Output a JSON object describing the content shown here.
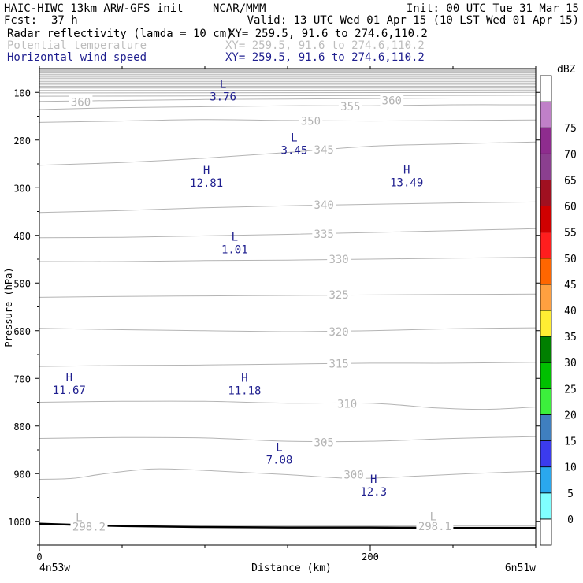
{
  "header": {
    "model": "HAIC-HIWC 13km ARW-GFS init",
    "org": "NCAR/MMM",
    "init": "Init: 00 UTC Tue 31 Mar 15",
    "fcst_label": "Fcst:",
    "fcst_value": "37 h",
    "valid": "Valid: 13 UTC Wed 01 Apr 15 (10 LST Wed 01 Apr 15)"
  },
  "fields": [
    {
      "name": "Radar reflectivity (lamda = 10 cm)",
      "xy": "XY= 259.5, 91.6 to 274.6,110.2",
      "color": "#000000"
    },
    {
      "name": "Potential temperature",
      "xy": "XY= 259.5, 91.6 to 274.6,110.2",
      "color": "#bdbdbd"
    },
    {
      "name": "Horizontal wind speed",
      "xy": "XY= 259.5, 91.6 to 274.6,110.2",
      "color": "#1f1f8f"
    }
  ],
  "colors": {
    "theta": "#b4b4b4",
    "wind": "#1f1f8f",
    "terrain": "#000000"
  },
  "chart_data": {
    "type": "cross-section",
    "xlabel": "Distance (km)",
    "ylabel": "Pressure (hPa)",
    "x_start_label": "4n53w",
    "x_end_label": "6n51w",
    "xlim": [
      0,
      300
    ],
    "ylim": [
      1050,
      50
    ],
    "y_scale": "linear, pressure decreasing upward",
    "x_ticks": [
      0,
      200
    ],
    "x_tick_labels": [
      "0",
      "200"
    ],
    "y_ticks": [
      100,
      200,
      300,
      400,
      500,
      600,
      700,
      800,
      900,
      1000
    ],
    "y_tick_labels": [
      "100",
      "200",
      "300",
      "400",
      "500",
      "600",
      "700",
      "800",
      "900",
      "1000"
    ],
    "potential_temperature": {
      "labeled_contours": [
        "300",
        "305",
        "310",
        "315",
        "320",
        "325",
        "330",
        "335",
        "340",
        "345",
        "350",
        "355",
        "360"
      ],
      "contour_interval_K": 5,
      "contours": [
        {
          "k": 298,
          "x": [
            0,
            300
          ],
          "p": [
            1010,
            1010
          ]
        },
        {
          "k": 300,
          "x": [
            0,
            20,
            40,
            70,
            110,
            150,
            190,
            230,
            260,
            300
          ],
          "p": [
            912,
            910,
            900,
            890,
            895,
            902,
            910,
            905,
            900,
            895
          ]
        },
        {
          "k": 305,
          "x": [
            0,
            50,
            100,
            150,
            200,
            250,
            300
          ],
          "p": [
            826,
            824,
            825,
            832,
            832,
            826,
            822
          ]
        },
        {
          "k": 310,
          "x": [
            0,
            50,
            100,
            150,
            200,
            240,
            270,
            300
          ],
          "p": [
            750,
            748,
            748,
            752,
            752,
            762,
            765,
            760
          ]
        },
        {
          "k": 315,
          "x": [
            0,
            50,
            100,
            150,
            200,
            250,
            300
          ],
          "p": [
            675,
            673,
            672,
            670,
            668,
            668,
            666
          ]
        },
        {
          "k": 320,
          "x": [
            0,
            50,
            100,
            150,
            200,
            250,
            300
          ],
          "p": [
            595,
            598,
            600,
            602,
            600,
            596,
            594
          ]
        },
        {
          "k": 325,
          "x": [
            0,
            50,
            100,
            150,
            200,
            250,
            300
          ],
          "p": [
            530,
            528,
            527,
            526,
            525,
            524,
            523
          ]
        },
        {
          "k": 330,
          "x": [
            0,
            50,
            100,
            150,
            200,
            250,
            300
          ],
          "p": [
            455,
            455,
            453,
            452,
            450,
            448,
            446
          ]
        },
        {
          "k": 335,
          "x": [
            0,
            50,
            100,
            150,
            200,
            250,
            300
          ],
          "p": [
            405,
            404,
            401,
            398,
            394,
            390,
            386
          ]
        },
        {
          "k": 340,
          "x": [
            0,
            50,
            100,
            150,
            200,
            250,
            300
          ],
          "p": [
            352,
            348,
            342,
            338,
            335,
            332,
            330
          ]
        },
        {
          "k": 345,
          "x": [
            0,
            50,
            100,
            150,
            200,
            250,
            300
          ],
          "p": [
            253,
            247,
            238,
            226,
            213,
            208,
            204
          ]
        },
        {
          "k": 350,
          "x": [
            0,
            50,
            100,
            150,
            200,
            250,
            300
          ],
          "p": [
            163,
            160,
            157,
            159,
            160,
            159,
            158
          ]
        },
        {
          "k": 355,
          "x": [
            0,
            50,
            100,
            150,
            200,
            250,
            300
          ],
          "p": [
            136,
            132,
            130,
            128,
            128,
            126,
            126
          ]
        },
        {
          "k": 360,
          "x": [
            0,
            50,
            100,
            150,
            200,
            250,
            300
          ],
          "p": [
            119,
            117,
            115,
            114,
            113,
            112,
            112
          ]
        },
        {
          "k": 365,
          "x": [
            0,
            300
          ],
          "p": [
            108,
            106
          ]
        },
        {
          "k": 370,
          "x": [
            0,
            300
          ],
          "p": [
            101,
            100
          ]
        },
        {
          "k": 375,
          "x": [
            0,
            300
          ],
          "p": [
            96,
            95
          ]
        },
        {
          "k": 380,
          "x": [
            0,
            300
          ],
          "p": [
            91,
            91
          ]
        },
        {
          "k": 385,
          "x": [
            0,
            300
          ],
          "p": [
            87,
            87
          ]
        },
        {
          "k": 390,
          "x": [
            0,
            300
          ],
          "p": [
            83,
            83
          ]
        },
        {
          "k": 395,
          "x": [
            0,
            300
          ],
          "p": [
            80,
            80
          ]
        },
        {
          "k": 400,
          "x": [
            0,
            300
          ],
          "p": [
            77,
            77
          ]
        },
        {
          "k": 405,
          "x": [
            0,
            300
          ],
          "p": [
            74,
            74
          ]
        },
        {
          "k": 410,
          "x": [
            0,
            300
          ],
          "p": [
            71,
            71
          ]
        },
        {
          "k": 415,
          "x": [
            0,
            300
          ],
          "p": [
            68,
            68
          ]
        },
        {
          "k": 420,
          "x": [
            0,
            300
          ],
          "p": [
            65,
            65
          ]
        },
        {
          "k": 425,
          "x": [
            0,
            300
          ],
          "p": [
            62,
            62
          ]
        },
        {
          "k": 430,
          "x": [
            0,
            300
          ],
          "p": [
            59,
            59
          ]
        },
        {
          "k": 435,
          "x": [
            0,
            300
          ],
          "p": [
            57,
            57
          ]
        },
        {
          "k": 440,
          "x": [
            0,
            300
          ],
          "p": [
            55,
            55
          ]
        },
        {
          "k": 445,
          "x": [
            0,
            300
          ],
          "p": [
            53,
            53
          ]
        },
        {
          "k": 450,
          "x": [
            0,
            300
          ],
          "p": [
            51,
            51
          ]
        }
      ],
      "labels": [
        {
          "text": "360",
          "x": 25,
          "p": 120
        },
        {
          "text": "360",
          "x": 213,
          "p": 117
        },
        {
          "text": "355",
          "x": 188,
          "p": 129
        },
        {
          "text": "350",
          "x": 164,
          "p": 160
        },
        {
          "text": "345",
          "x": 172,
          "p": 220
        },
        {
          "text": "340",
          "x": 172,
          "p": 336
        },
        {
          "text": "335",
          "x": 172,
          "p": 397
        },
        {
          "text": "330",
          "x": 181,
          "p": 450
        },
        {
          "text": "325",
          "x": 181,
          "p": 524
        },
        {
          "text": "320",
          "x": 181,
          "p": 602
        },
        {
          "text": "315",
          "x": 181,
          "p": 669
        },
        {
          "text": "310",
          "x": 186,
          "p": 753
        },
        {
          "text": "305",
          "x": 172,
          "p": 834
        },
        {
          "text": "300",
          "x": 190,
          "p": 902
        },
        {
          "text": "298.2",
          "x": 30,
          "p": 1011
        },
        {
          "text": "298.1",
          "x": 239,
          "p": 1010
        }
      ],
      "extrema": [
        {
          "mark": "L",
          "x": 24,
          "p": 991
        },
        {
          "mark": "L",
          "x": 238,
          "p": 990
        }
      ]
    },
    "wind_speed_extrema": [
      {
        "mark": "L",
        "value": "3.76",
        "x": 111,
        "p": 82
      },
      {
        "mark": "L",
        "value": "3.45",
        "x": 154,
        "p": 195
      },
      {
        "mark": "H",
        "value": "12.81",
        "x": 101,
        "p": 263
      },
      {
        "mark": "H",
        "value": "13.49",
        "x": 222,
        "p": 262
      },
      {
        "mark": "L",
        "value": "1.01",
        "x": 118,
        "p": 403
      },
      {
        "mark": "H",
        "value": "11.67",
        "x": 18,
        "p": 698
      },
      {
        "mark": "H",
        "value": "11.18",
        "x": 124,
        "p": 699
      },
      {
        "mark": "L",
        "value": "7.08",
        "x": 145,
        "p": 844
      },
      {
        "mark": "H",
        "value": "12.3",
        "x": 202,
        "p": 911
      }
    ],
    "terrain": {
      "x": [
        0,
        50,
        100,
        150,
        200,
        250,
        300
      ],
      "p": [
        1005,
        1010,
        1012,
        1013,
        1013,
        1014,
        1014
      ]
    }
  },
  "colorbar": {
    "unit": "dBZ",
    "levels": [
      "0",
      "5",
      "10",
      "15",
      "20",
      "25",
      "30",
      "35",
      "40",
      "45",
      "50",
      "55",
      "60",
      "65",
      "70",
      "75"
    ],
    "colors": [
      "#ffffff",
      "#80ffff",
      "#2aa8ee",
      "#3b3bee",
      "#3f7fbf",
      "#3cf03c",
      "#00c000",
      "#008000",
      "#ffee33",
      "#ffa040",
      "#ff6600",
      "#ff1e1e",
      "#d00000",
      "#a01020",
      "#8b3f8f",
      "#8e2c8e",
      "#c080c8",
      "#ffffff"
    ]
  }
}
